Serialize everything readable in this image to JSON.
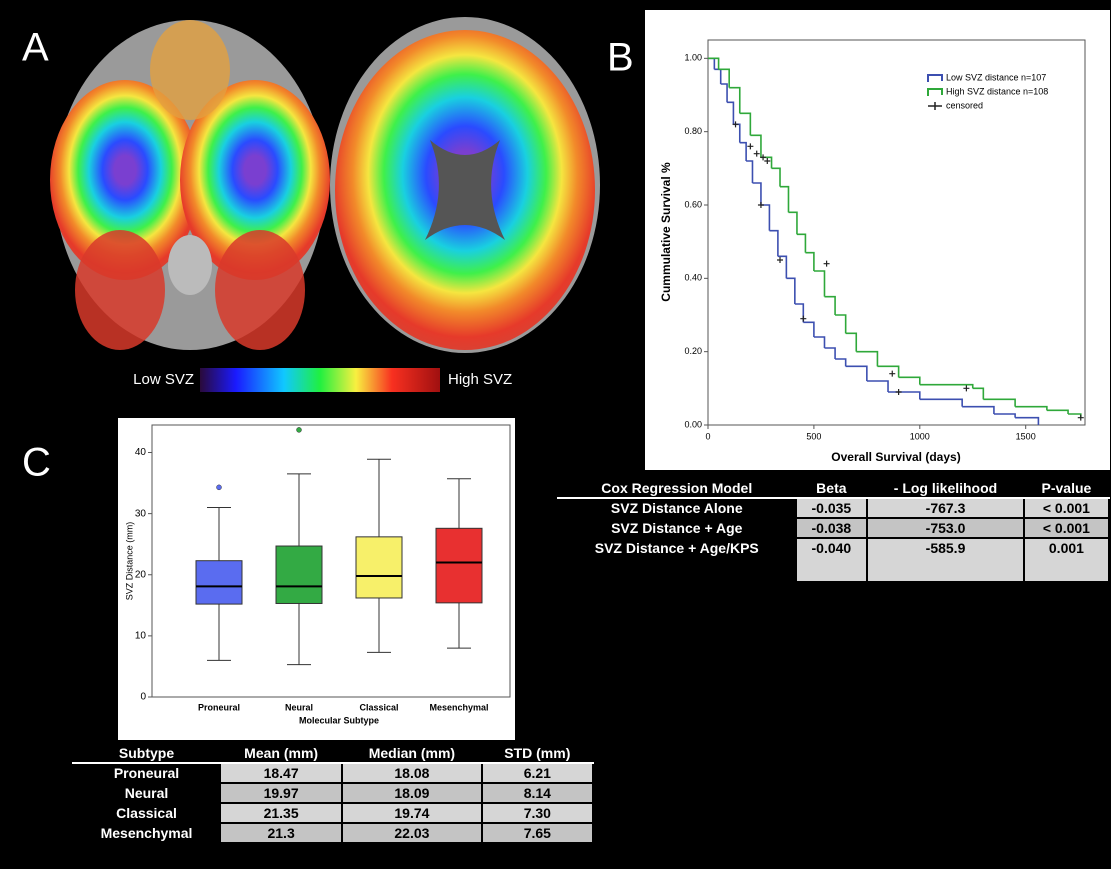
{
  "brain_map": {
    "label": "A",
    "low": "Low SVZ",
    "high": "High SVZ"
  },
  "chart_data": [
    {
      "type": "step",
      "label": "B",
      "y_label": "Cummulative Survival %",
      "x_label": "Overall Survival (days)",
      "xlim": [
        0,
        1780
      ],
      "ylim": [
        0,
        1.05
      ],
      "xticks": [
        0,
        500,
        1000,
        1500
      ],
      "yticks": [
        {
          "value": 0,
          "label": "0.00"
        },
        {
          "value": 0.2,
          "label": "0.20"
        },
        {
          "value": 0.4,
          "label": "0.40"
        },
        {
          "value": 0.6,
          "label": "0.60"
        },
        {
          "value": 0.8,
          "label": "0.80"
        },
        {
          "value": 1,
          "label": "1.00"
        }
      ],
      "series": [
        {
          "name": "Low SVZ distance n=107",
          "color": "#3c4fb0",
          "x": [
            0,
            30,
            60,
            90,
            120,
            150,
            180,
            210,
            250,
            290,
            330,
            370,
            410,
            450,
            500,
            550,
            600,
            650,
            750,
            850,
            1000,
            1200,
            1350,
            1450,
            1560
          ],
          "values": [
            1.0,
            0.97,
            0.93,
            0.88,
            0.82,
            0.77,
            0.72,
            0.66,
            0.6,
            0.53,
            0.46,
            0.4,
            0.33,
            0.28,
            0.24,
            0.21,
            0.18,
            0.16,
            0.12,
            0.09,
            0.07,
            0.05,
            0.03,
            0.02,
            0.0
          ]
        },
        {
          "name": "High SVZ distance n=108",
          "color": "#2fa83a",
          "x": [
            0,
            50,
            100,
            150,
            200,
            250,
            300,
            340,
            380,
            420,
            460,
            500,
            550,
            600,
            650,
            700,
            800,
            900,
            1000,
            1250,
            1300,
            1450,
            1600,
            1700,
            1760
          ],
          "values": [
            1.0,
            0.97,
            0.92,
            0.85,
            0.79,
            0.73,
            0.7,
            0.65,
            0.58,
            0.52,
            0.47,
            0.42,
            0.35,
            0.3,
            0.25,
            0.2,
            0.16,
            0.13,
            0.11,
            0.1,
            0.07,
            0.05,
            0.04,
            0.03,
            0.02
          ]
        }
      ],
      "censored": {
        "name": "censored",
        "color": "#222222",
        "x": [
          130,
          250,
          340,
          450,
          900,
          200,
          230,
          260,
          280,
          560,
          870,
          1220,
          1760
        ],
        "values": [
          0.82,
          0.6,
          0.45,
          0.29,
          0.09,
          0.76,
          0.74,
          0.73,
          0.72,
          0.44,
          0.14,
          0.1,
          0.02
        ]
      }
    },
    {
      "type": "box",
      "label": "C",
      "y_label": "SVZ Distance (mm)",
      "x_label": "Molecular Subtype",
      "ylim": [
        0,
        44.5
      ],
      "yticks": [
        0,
        10,
        20,
        30,
        40
      ],
      "categories": [
        "Proneural",
        "Neural",
        "Classical",
        "Mesenchymal"
      ],
      "colors": [
        "#5a6cf0",
        "#33aa44",
        "#f7f06a",
        "#e83030"
      ],
      "whisker_low": [
        6,
        5.3,
        7.3,
        8
      ],
      "q1": [
        15.2,
        15.3,
        16.2,
        15.4
      ],
      "median": [
        18.1,
        18.1,
        19.8,
        22
      ],
      "q3": [
        22.3,
        24.7,
        26.2,
        27.6
      ],
      "whisker_high": [
        31,
        36.5,
        38.9,
        35.7
      ],
      "outliers": [
        34.3,
        43.7,
        null,
        null
      ]
    }
  ],
  "cox_table": {
    "header": [
      "Cox Regression Model",
      "Beta",
      "- Log likelihood",
      "P-value"
    ],
    "rows": [
      [
        "SVZ Distance Alone",
        "-0.035",
        "-767.3",
        "< 0.001"
      ],
      [
        "SVZ Distance + Age",
        "-0.038",
        "-753.0",
        "< 0.001"
      ],
      [
        "SVZ Distance + Age/KPS",
        "-0.040",
        "-585.9",
        "0.001"
      ]
    ]
  },
  "subtype_table": {
    "header": [
      "Subtype",
      "Mean (mm)",
      "Median (mm)",
      "STD (mm)"
    ],
    "rows": [
      [
        "Proneural",
        "18.47",
        "18.08",
        "6.21"
      ],
      [
        "Neural",
        "19.97",
        "18.09",
        "8.14"
      ],
      [
        "Classical",
        "21.35",
        "19.74",
        "7.30"
      ],
      [
        "Mesenchymal",
        "21.3",
        "22.03",
        "7.65"
      ]
    ]
  }
}
